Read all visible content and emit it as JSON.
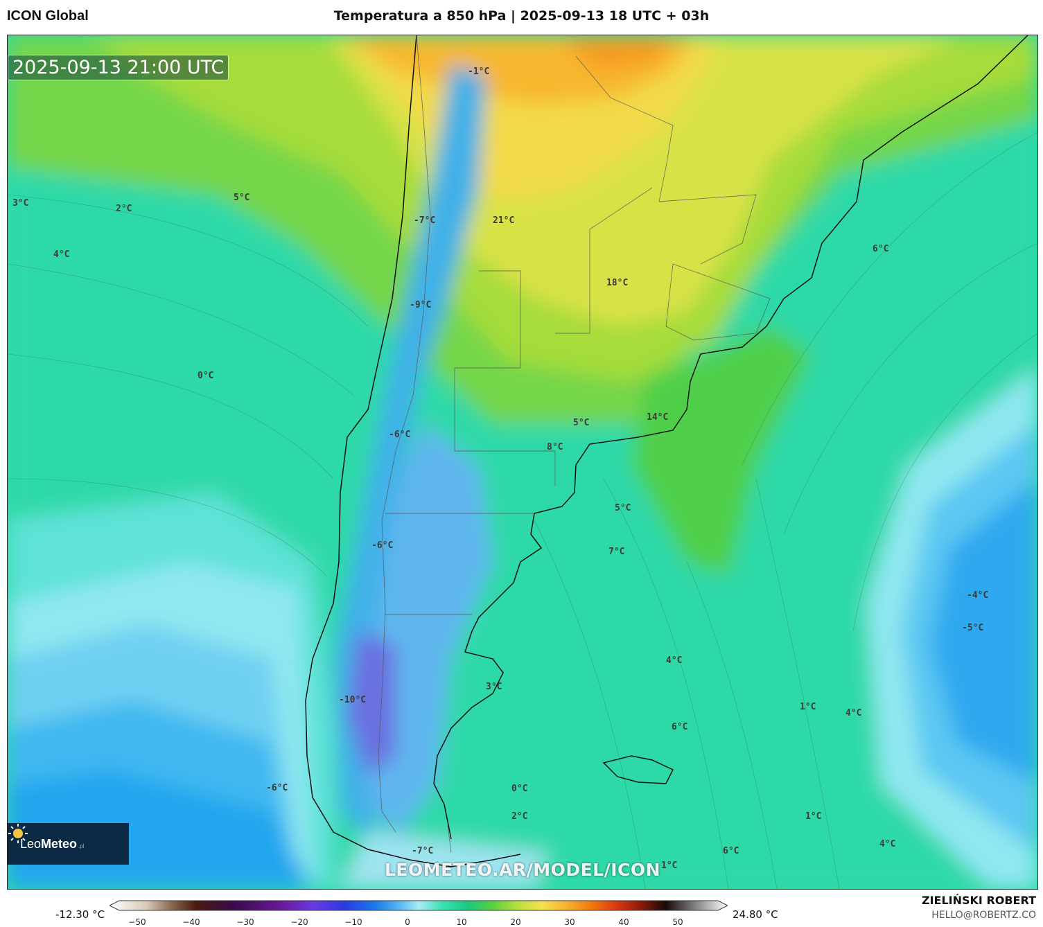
{
  "header": {
    "model": "ICON Global",
    "title": "Temperatura a 850 hPa | 2025-09-13 18 UTC + 03h"
  },
  "map": {
    "timestamp": "2025-09-13 21:00 UTC",
    "watermark": "LEOMETEO.AR/MODEL/ICON",
    "ocean_color": "#2fd9a8",
    "labels": [
      {
        "text": "3°C"
      },
      {
        "text": "2°C"
      },
      {
        "text": "5°C"
      },
      {
        "text": "4°C"
      },
      {
        "text": "-1°C"
      },
      {
        "text": "-7°C"
      },
      {
        "text": "21°C"
      },
      {
        "text": "18°C"
      },
      {
        "text": "-9°C"
      },
      {
        "text": "0°C"
      },
      {
        "text": "6°C"
      },
      {
        "text": "-6°C"
      },
      {
        "text": "5°C"
      },
      {
        "text": "8°C"
      },
      {
        "text": "14°C"
      },
      {
        "text": "5°C"
      },
      {
        "text": "-6°C"
      },
      {
        "text": "7°C"
      },
      {
        "text": "-4°C"
      },
      {
        "text": "-5°C"
      },
      {
        "text": "4°C"
      },
      {
        "text": "3°C"
      },
      {
        "text": "-10°C"
      },
      {
        "text": "1°C"
      },
      {
        "text": "4°C"
      },
      {
        "text": "6°C"
      },
      {
        "text": "-6°C"
      },
      {
        "text": "0°C"
      },
      {
        "text": "2°C"
      },
      {
        "text": "1°C"
      },
      {
        "text": "-7°C"
      },
      {
        "text": "6°C"
      },
      {
        "text": "1°C"
      },
      {
        "text": "4°C"
      }
    ]
  },
  "logo": {
    "brand_light": "Leo",
    "brand_bold": "Meteo",
    "suffix": ".pl",
    "icon": "sun-icon"
  },
  "colorbar": {
    "min_label": "-12.30 °C",
    "max_label": "24.80 °C",
    "ticks": [
      "−50",
      "−40",
      "−30",
      "−20",
      "−10",
      "0",
      "10",
      "20",
      "30",
      "40",
      "50"
    ]
  },
  "author": {
    "name": "ZIELIŃSKI ROBERT",
    "email": "HELLO@ROBERTZ.CO"
  }
}
